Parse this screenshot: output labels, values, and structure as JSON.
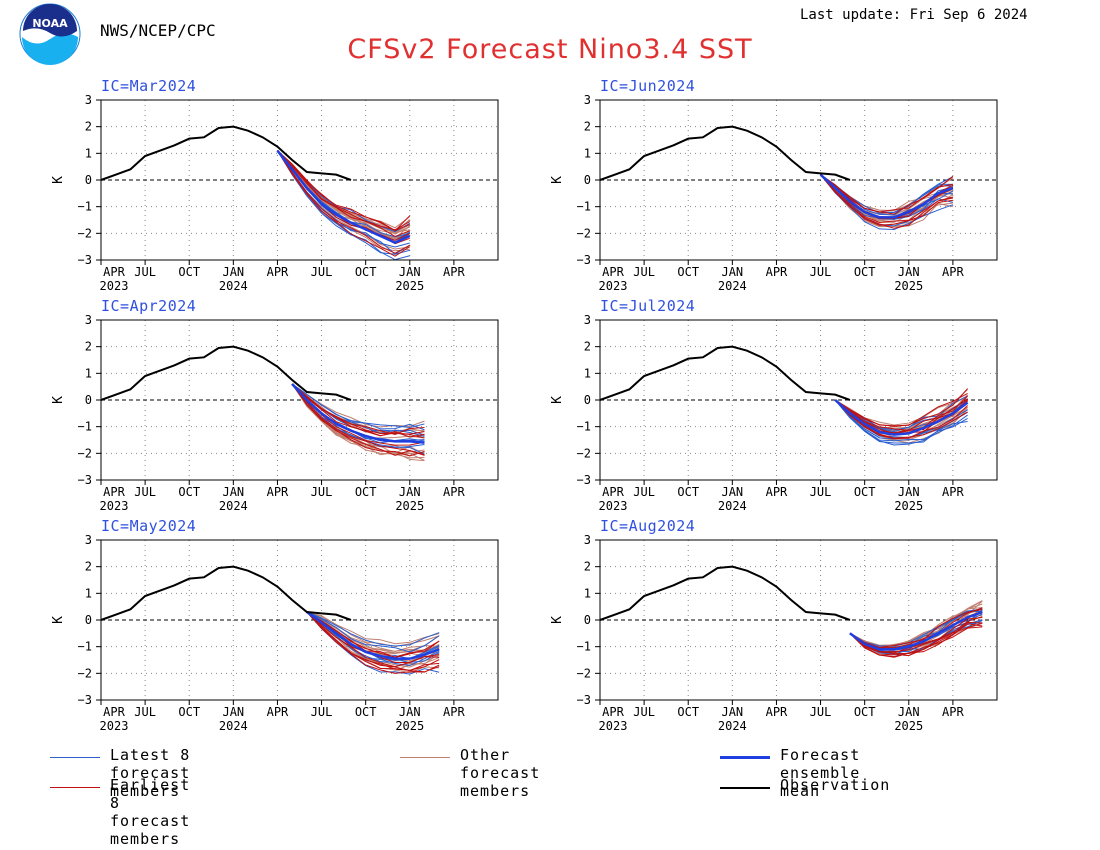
{
  "header": {
    "agency": "NWS/NCEP/CPC",
    "last_update": "Last update: Fri Sep 6 2024",
    "title": "CFSv2 Forecast Nino3.4 SST",
    "logo_text": "NOAA"
  },
  "colors": {
    "latest": "#2a5fd0",
    "other": "#c08070",
    "earliest": "#c01010",
    "mean": "#1f3fe0",
    "observation": "#000000",
    "title": "#e03030",
    "panel_label": "#3050e0"
  },
  "legend": [
    {
      "key": "latest",
      "label": "Latest 8 forecast members"
    },
    {
      "key": "other",
      "label": "Other forecast members"
    },
    {
      "key": "mean",
      "label": "Forecast ensemble mean"
    },
    {
      "key": "earliest",
      "label": "Earliest 8 forecast members"
    },
    {
      "key": "observation",
      "label": "Observation"
    }
  ],
  "chart_data": [
    {
      "type": "line",
      "panel_label": "IC=Mar2024",
      "ylabel": "K",
      "ylim": [
        -3,
        3
      ],
      "yticks": [
        -3,
        -2,
        -1,
        0,
        1,
        2,
        3
      ],
      "x_axis_months": "month index: 0 = Apr 2023",
      "xlim": [
        0,
        27
      ],
      "xtick_labels": [
        "APR",
        "JUL",
        "OCT",
        "JAN",
        "APR",
        "JUL",
        "OCT",
        "JAN",
        "APR"
      ],
      "year_labels": [
        {
          "at": 0,
          "text": "2023"
        },
        {
          "at": 9,
          "text": "2024"
        },
        {
          "at": 21,
          "text": "2025"
        }
      ],
      "grid": true,
      "observation": [
        0.0,
        0.2,
        0.4,
        0.9,
        1.1,
        1.3,
        1.55,
        1.6,
        1.95,
        2.0,
        1.85,
        1.6,
        1.25,
        0.75,
        0.3,
        0.25,
        0.2,
        0.0
      ],
      "ic_index": 12,
      "ensemble_mean": [
        1.1,
        0.4,
        -0.3,
        -0.9,
        -1.3,
        -1.6,
        -1.85,
        -2.1,
        -2.35,
        -2.1
      ],
      "member_spread": 0.45
    },
    {
      "type": "line",
      "panel_label": "IC=Jun2024",
      "ylabel": "K",
      "ylim": [
        -3,
        3
      ],
      "yticks": [
        -3,
        -2,
        -1,
        0,
        1,
        2,
        3
      ],
      "x_axis_months": "month index: 0 = Apr 2023",
      "xlim": [
        0,
        27
      ],
      "xtick_labels": [
        "APR",
        "JUL",
        "OCT",
        "JAN",
        "APR",
        "JUL",
        "OCT",
        "JAN",
        "APR"
      ],
      "year_labels": [
        {
          "at": 0,
          "text": "2023"
        },
        {
          "at": 9,
          "text": "2024"
        },
        {
          "at": 21,
          "text": "2025"
        }
      ],
      "grid": true,
      "observation": [
        0.0,
        0.2,
        0.4,
        0.9,
        1.1,
        1.3,
        1.55,
        1.6,
        1.95,
        2.0,
        1.85,
        1.6,
        1.25,
        0.75,
        0.3,
        0.25,
        0.2,
        0.0
      ],
      "ic_index": 15,
      "ensemble_mean": [
        0.2,
        -0.3,
        -0.8,
        -1.2,
        -1.4,
        -1.4,
        -1.2,
        -0.9,
        -0.5,
        -0.3
      ],
      "member_spread": 0.4
    },
    {
      "type": "line",
      "panel_label": "IC=Apr2024",
      "ylabel": "K",
      "ylim": [
        -3,
        3
      ],
      "yticks": [
        -3,
        -2,
        -1,
        0,
        1,
        2,
        3
      ],
      "x_axis_months": "month index: 0 = Apr 2023",
      "xlim": [
        0,
        27
      ],
      "xtick_labels": [
        "APR",
        "JUL",
        "OCT",
        "JAN",
        "APR",
        "JUL",
        "OCT",
        "JAN",
        "APR"
      ],
      "year_labels": [
        {
          "at": 0,
          "text": "2023"
        },
        {
          "at": 9,
          "text": "2024"
        },
        {
          "at": 21,
          "text": "2025"
        }
      ],
      "grid": true,
      "observation": [
        0.0,
        0.2,
        0.4,
        0.9,
        1.1,
        1.3,
        1.55,
        1.6,
        1.95,
        2.0,
        1.85,
        1.6,
        1.25,
        0.75,
        0.3,
        0.25,
        0.2,
        0.0
      ],
      "ic_index": 13,
      "ensemble_mean": [
        0.6,
        0.0,
        -0.5,
        -0.9,
        -1.15,
        -1.35,
        -1.5,
        -1.55,
        -1.55,
        -1.6
      ],
      "member_spread": 0.5
    },
    {
      "type": "line",
      "panel_label": "IC=Jul2024",
      "ylabel": "K",
      "ylim": [
        -3,
        3
      ],
      "yticks": [
        -3,
        -2,
        -1,
        0,
        1,
        2,
        3
      ],
      "x_axis_months": "month index: 0 = Apr 2023",
      "xlim": [
        0,
        27
      ],
      "xtick_labels": [
        "APR",
        "JUL",
        "OCT",
        "JAN",
        "APR",
        "JUL",
        "OCT",
        "JAN",
        "APR"
      ],
      "year_labels": [
        {
          "at": 0,
          "text": "2023"
        },
        {
          "at": 9,
          "text": "2024"
        },
        {
          "at": 21,
          "text": "2025"
        }
      ],
      "grid": true,
      "observation": [
        0.0,
        0.2,
        0.4,
        0.9,
        1.1,
        1.3,
        1.55,
        1.6,
        1.95,
        2.0,
        1.85,
        1.6,
        1.25,
        0.75,
        0.3,
        0.25,
        0.2,
        0.0
      ],
      "ic_index": 16,
      "ensemble_mean": [
        0.0,
        -0.5,
        -0.9,
        -1.2,
        -1.3,
        -1.25,
        -1.05,
        -0.8,
        -0.5,
        -0.1
      ],
      "member_spread": 0.4
    },
    {
      "type": "line",
      "panel_label": "IC=May2024",
      "ylabel": "K",
      "ylim": [
        -3,
        3
      ],
      "yticks": [
        -3,
        -2,
        -1,
        0,
        1,
        2,
        3
      ],
      "x_axis_months": "month index: 0 = Apr 2023",
      "xlim": [
        0,
        27
      ],
      "xtick_labels": [
        "APR",
        "JUL",
        "OCT",
        "JAN",
        "APR",
        "JUL",
        "OCT",
        "JAN",
        "APR"
      ],
      "year_labels": [
        {
          "at": 0,
          "text": "2023"
        },
        {
          "at": 9,
          "text": "2024"
        },
        {
          "at": 21,
          "text": "2025"
        }
      ],
      "grid": true,
      "observation": [
        0.0,
        0.2,
        0.4,
        0.9,
        1.1,
        1.3,
        1.55,
        1.6,
        1.95,
        2.0,
        1.85,
        1.6,
        1.25,
        0.75,
        0.3,
        0.25,
        0.2,
        0.0
      ],
      "ic_index": 14,
      "ensemble_mean": [
        0.3,
        -0.1,
        -0.5,
        -0.9,
        -1.2,
        -1.35,
        -1.45,
        -1.45,
        -1.3,
        -1.1
      ],
      "member_spread": 0.55
    },
    {
      "type": "line",
      "panel_label": "IC=Aug2024",
      "ylabel": "K",
      "ylim": [
        -3,
        3
      ],
      "yticks": [
        -3,
        -2,
        -1,
        0,
        1,
        2,
        3
      ],
      "x_axis_months": "month index: 0 = Apr 2023",
      "xlim": [
        0,
        27
      ],
      "xtick_labels": [
        "APR",
        "JUL",
        "OCT",
        "JAN",
        "APR",
        "JUL",
        "OCT",
        "JAN",
        "APR"
      ],
      "year_labels": [
        {
          "at": 0,
          "text": "2023"
        },
        {
          "at": 9,
          "text": "2024"
        },
        {
          "at": 21,
          "text": "2025"
        }
      ],
      "grid": true,
      "observation": [
        0.0,
        0.2,
        0.4,
        0.9,
        1.1,
        1.3,
        1.55,
        1.6,
        1.95,
        2.0,
        1.85,
        1.6,
        1.25,
        0.75,
        0.3,
        0.25,
        0.2,
        0.0
      ],
      "ic_index": 17,
      "ensemble_mean": [
        -0.5,
        -0.9,
        -1.1,
        -1.1,
        -1.0,
        -0.8,
        -0.5,
        -0.2,
        0.1,
        0.3
      ],
      "member_spread": 0.3
    }
  ]
}
